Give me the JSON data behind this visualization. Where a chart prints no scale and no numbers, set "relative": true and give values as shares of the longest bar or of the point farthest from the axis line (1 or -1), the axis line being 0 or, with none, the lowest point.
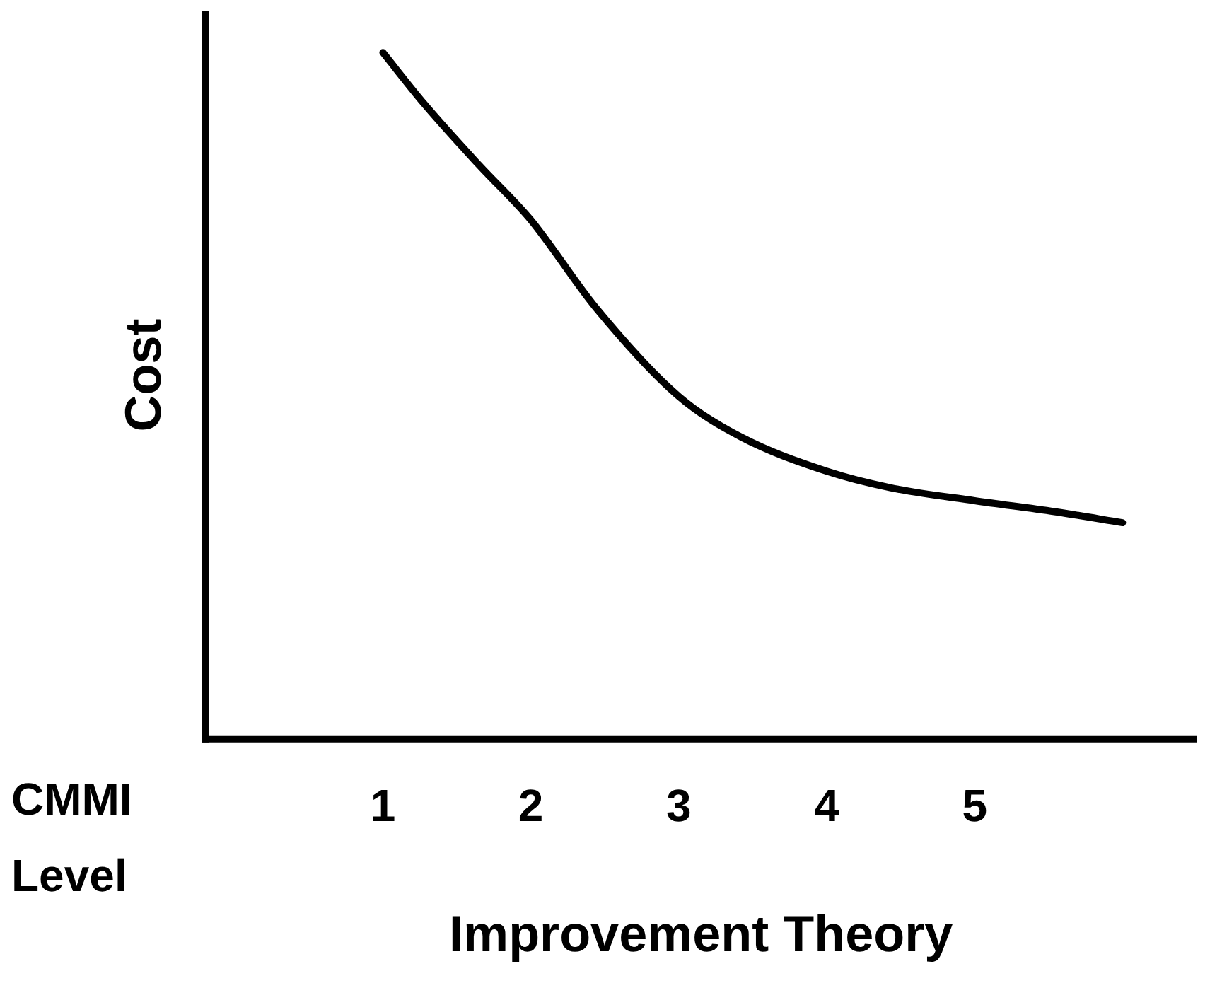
{
  "chart_data": {
    "type": "line",
    "relative": true,
    "xlabel": "Improvement Theory",
    "ylabel": "Cost",
    "annotations": [
      "CMMI Level"
    ],
    "xlim": [
      -0.2,
      6.5
    ],
    "xticks": [
      1,
      2,
      3,
      4,
      5
    ],
    "marker": "none",
    "line_style": "solid",
    "tick_labels": "x",
    "series": [
      {
        "color": "#000000",
        "x": [
          1,
          1.28,
          1.65,
          2,
          2.44,
          3,
          3.42,
          4,
          4.43,
          5,
          5.54,
          6
        ],
        "values": [
          1.0,
          0.925,
          0.836,
          0.756,
          0.628,
          0.499,
          0.44,
          0.39,
          0.366,
          0.347,
          0.331,
          0.315
        ]
      }
    ]
  }
}
